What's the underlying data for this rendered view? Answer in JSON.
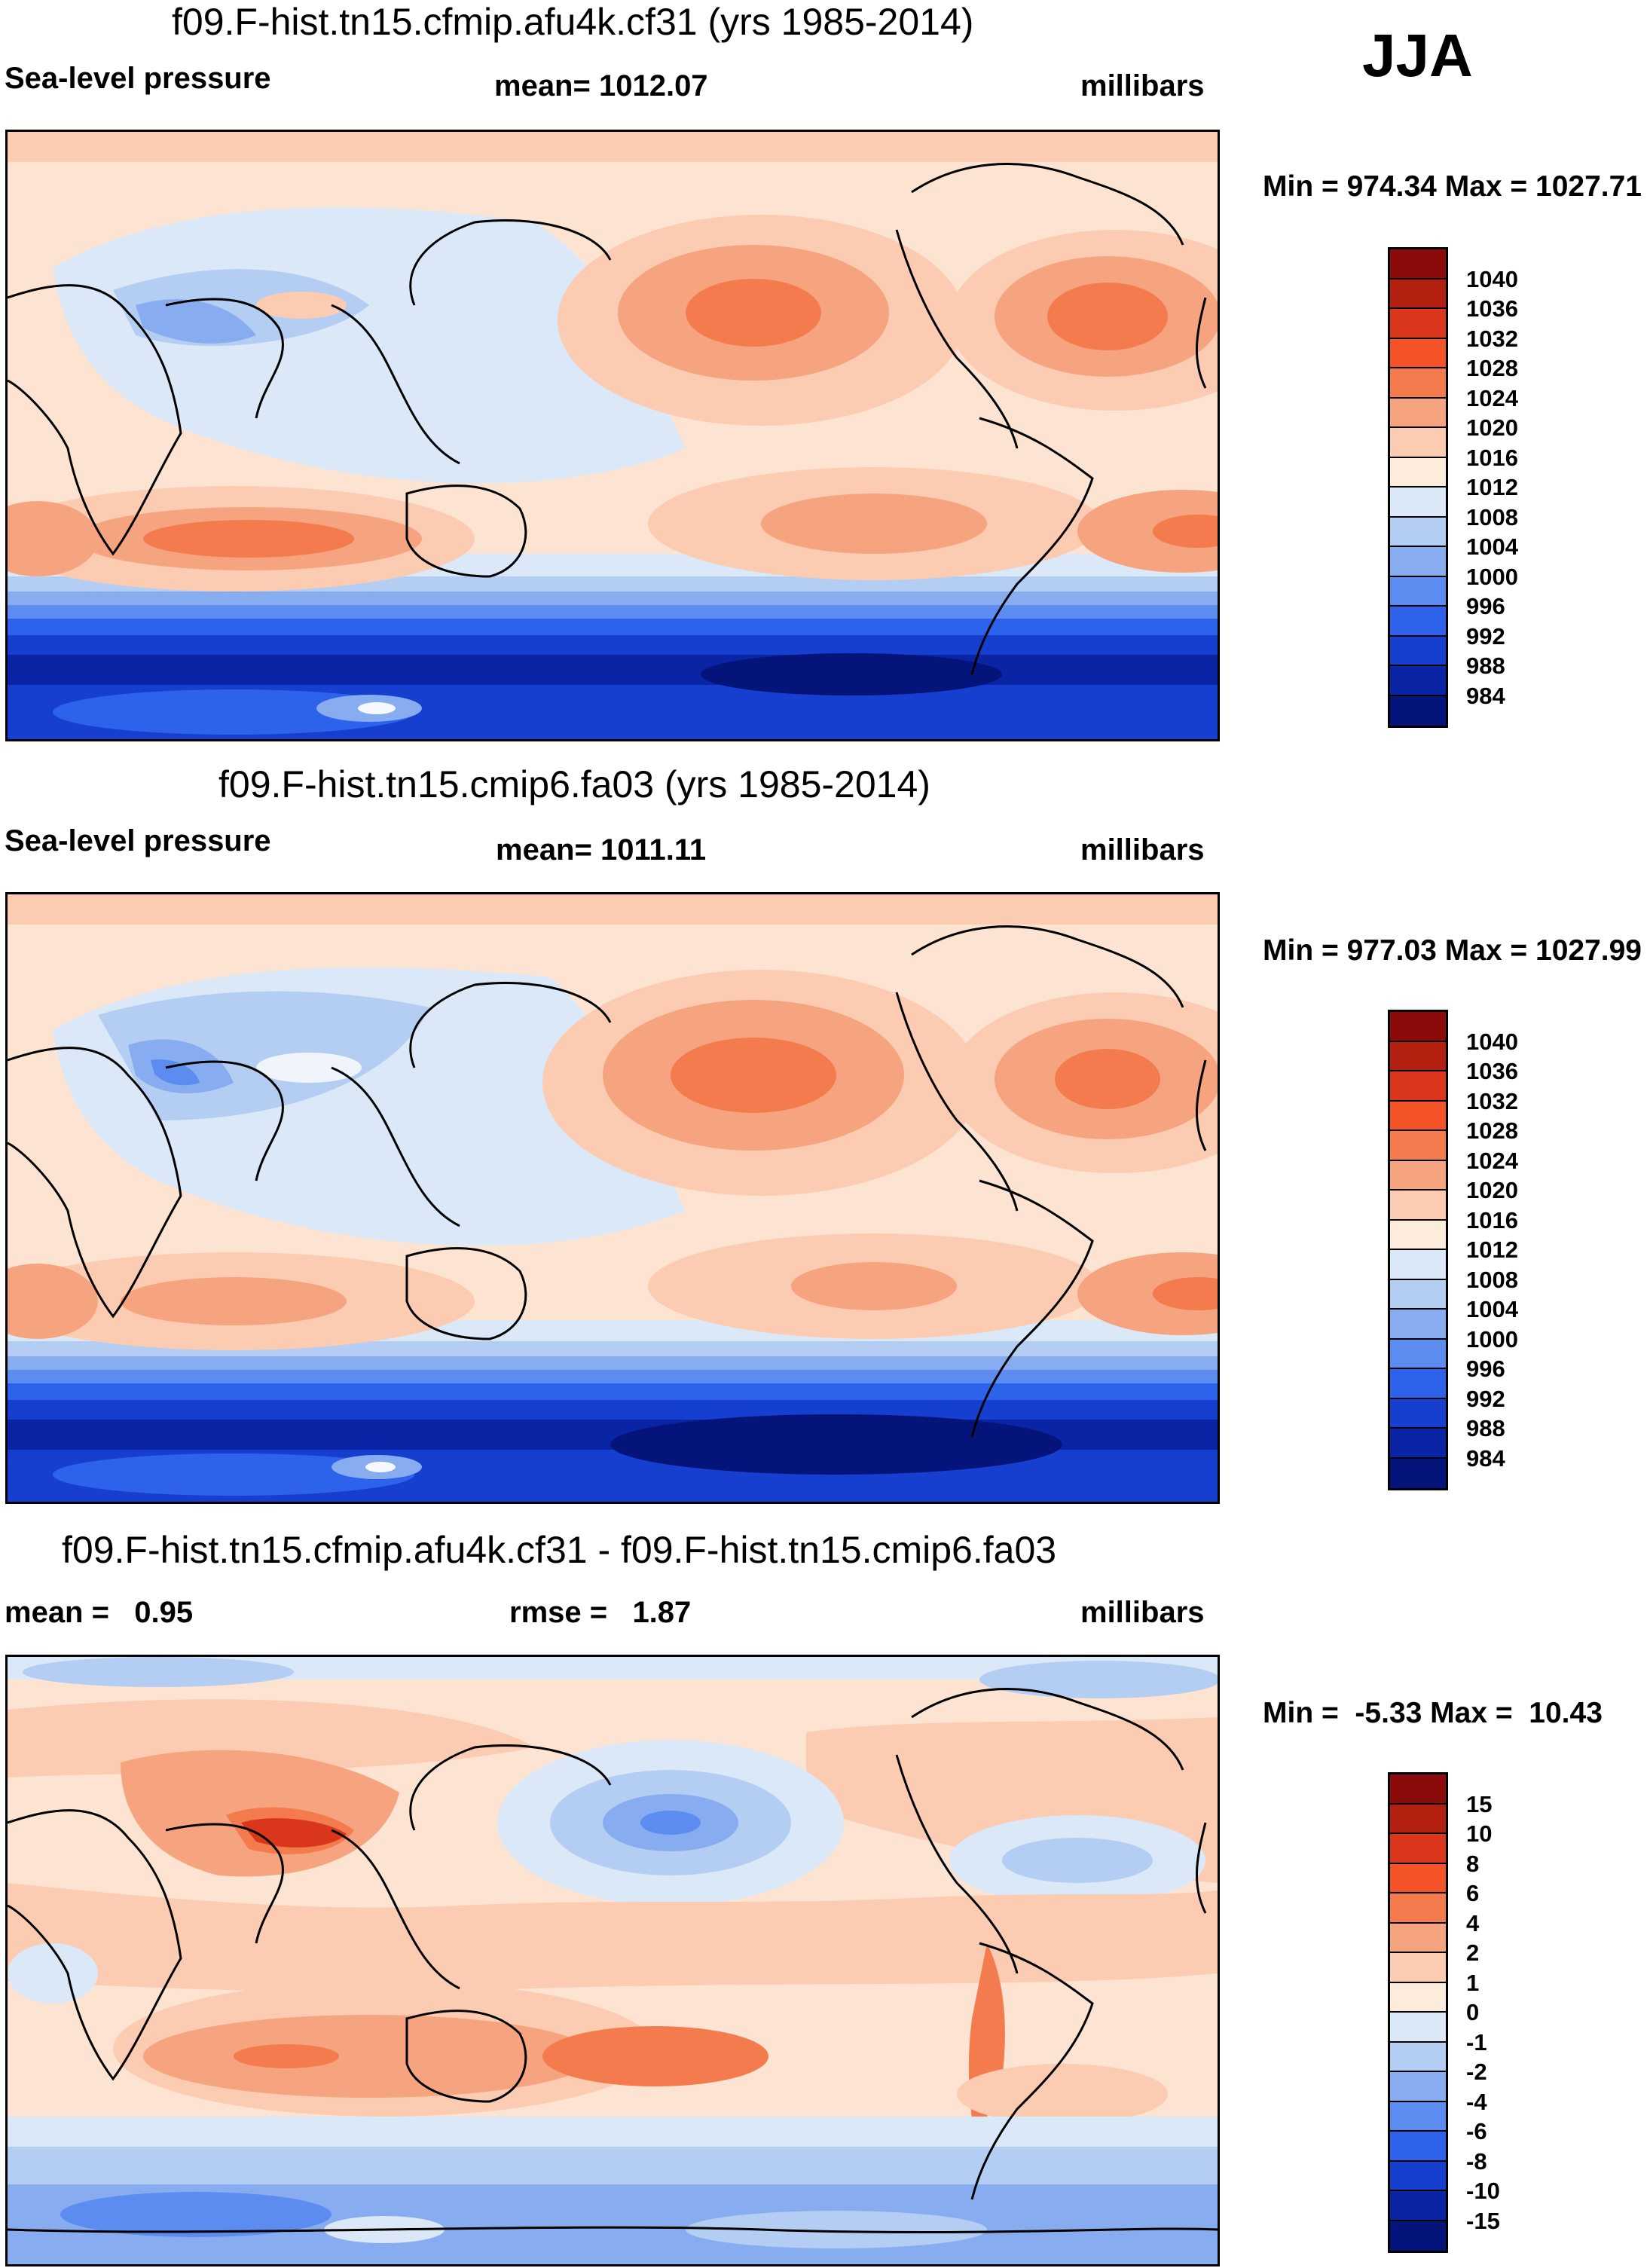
{
  "season": "JJA",
  "panels": [
    {
      "title": "f09.F-hist.tn15.cfmip.afu4k.cf31 (yrs 1985-2014)",
      "left_label": "Sea-level pressure",
      "center_label": "mean= 1012.07",
      "right_label": "millibars",
      "minmax": "Min = 974.34 Max = 1027.71",
      "colorbar_labels": [
        "1040",
        "1036",
        "1032",
        "1028",
        "1024",
        "1020",
        "1016",
        "1012",
        "1008",
        "1004",
        "1000",
        "996",
        "992",
        "988",
        "984"
      ],
      "colorbar_colors": [
        "#8b0a0a",
        "#b3200f",
        "#d9361b",
        "#f45327",
        "#f47b4e",
        "#f6a480",
        "#fcccb2",
        "#fdebdc",
        "#dbe8f7",
        "#b4cdf2",
        "#87acf0",
        "#5c8cf0",
        "#2d63ea",
        "#163fcf",
        "#0a24a6",
        "#05147a"
      ]
    },
    {
      "title": "f09.F-hist.tn15.cmip6.fa03 (yrs 1985-2014)",
      "left_label": "Sea-level pressure",
      "center_label": "mean= 1011.11",
      "right_label": "millibars",
      "minmax": "Min = 977.03 Max = 1027.99",
      "colorbar_labels": [
        "1040",
        "1036",
        "1032",
        "1028",
        "1024",
        "1020",
        "1016",
        "1012",
        "1008",
        "1004",
        "1000",
        "996",
        "992",
        "988",
        "984"
      ],
      "colorbar_colors": [
        "#8b0a0a",
        "#b3200f",
        "#d9361b",
        "#f45327",
        "#f47b4e",
        "#f6a480",
        "#fcccb2",
        "#fdebdc",
        "#dbe8f7",
        "#b4cdf2",
        "#87acf0",
        "#5c8cf0",
        "#2d63ea",
        "#163fcf",
        "#0a24a6",
        "#05147a"
      ]
    },
    {
      "title": "f09.F-hist.tn15.cfmip.afu4k.cf31 - f09.F-hist.tn15.cmip6.fa03",
      "left_label": "mean =   0.95",
      "center_label": "rmse =   1.87",
      "right_label": "millibars",
      "minmax": "Min =  -5.33 Max =  10.43",
      "colorbar_labels": [
        "15",
        "10",
        "8",
        "6",
        "4",
        "2",
        "1",
        "0",
        "-1",
        "-2",
        "-4",
        "-6",
        "-8",
        "-10",
        "-15"
      ],
      "colorbar_colors": [
        "#8b0a0a",
        "#b3200f",
        "#d9361b",
        "#f45327",
        "#f47b4e",
        "#f6a480",
        "#fcccb2",
        "#fdebdc",
        "#dbe8f7",
        "#b4cdf2",
        "#87acf0",
        "#5c8cf0",
        "#2d63ea",
        "#163fcf",
        "#0a24a6",
        "#05147a"
      ]
    }
  ]
}
